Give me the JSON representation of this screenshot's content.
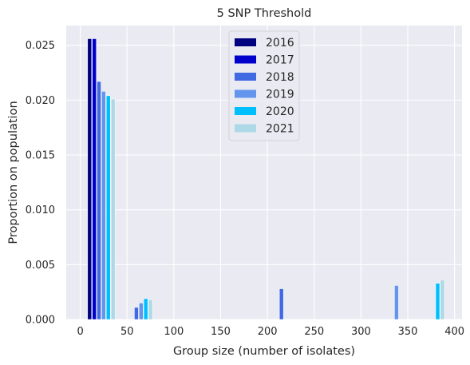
{
  "chart_data": {
    "type": "bar",
    "title": "5 SNP Threshold",
    "xlabel": "Group size (number of isolates)",
    "ylabel": "Proportion on population",
    "xlim": [
      -15,
      408
    ],
    "ylim": [
      0,
      0.0268
    ],
    "grid": true,
    "legend_position": "upper-center",
    "xticks": [
      {
        "value": 0,
        "label": "0"
      },
      {
        "value": 50,
        "label": "50"
      },
      {
        "value": 100,
        "label": "100"
      },
      {
        "value": 150,
        "label": "150"
      },
      {
        "value": 200,
        "label": "200"
      },
      {
        "value": 250,
        "label": "250"
      },
      {
        "value": 300,
        "label": "300"
      },
      {
        "value": 350,
        "label": "350"
      },
      {
        "value": 400,
        "label": "400"
      }
    ],
    "yticks": [
      {
        "value": 0,
        "label": "0.000"
      },
      {
        "value": 0.005,
        "label": "0.005"
      },
      {
        "value": 0.01,
        "label": "0.010"
      },
      {
        "value": 0.015,
        "label": "0.015"
      },
      {
        "value": 0.02,
        "label": "0.020"
      },
      {
        "value": 0.025,
        "label": "0.025"
      }
    ],
    "series": [
      {
        "name": "2016",
        "color": "#000080",
        "points": [
          {
            "x": 10,
            "y": 0.0256
          }
        ]
      },
      {
        "name": "2017",
        "color": "#0000CD",
        "points": [
          {
            "x": 15,
            "y": 0.0256
          }
        ]
      },
      {
        "name": "2018",
        "color": "#4169E1",
        "points": [
          {
            "x": 20,
            "y": 0.0217
          },
          {
            "x": 60,
            "y": 0.0011
          },
          {
            "x": 215,
            "y": 0.0028
          }
        ]
      },
      {
        "name": "2019",
        "color": "#6495ED",
        "points": [
          {
            "x": 25,
            "y": 0.0208
          },
          {
            "x": 65,
            "y": 0.0015
          },
          {
            "x": 338,
            "y": 0.0031
          }
        ]
      },
      {
        "name": "2020",
        "color": "#00BFFF",
        "points": [
          {
            "x": 30,
            "y": 0.0204
          },
          {
            "x": 70,
            "y": 0.0019
          },
          {
            "x": 382,
            "y": 0.0033
          }
        ]
      },
      {
        "name": "2021",
        "color": "#ADD8E6",
        "points": [
          {
            "x": 35,
            "y": 0.0201
          },
          {
            "x": 75,
            "y": 0.0018
          },
          {
            "x": 387,
            "y": 0.0036
          }
        ]
      }
    ],
    "colors": {
      "plot_background": "#EAEAF2",
      "grid": "#FFFFFF",
      "text": "#262626"
    }
  }
}
